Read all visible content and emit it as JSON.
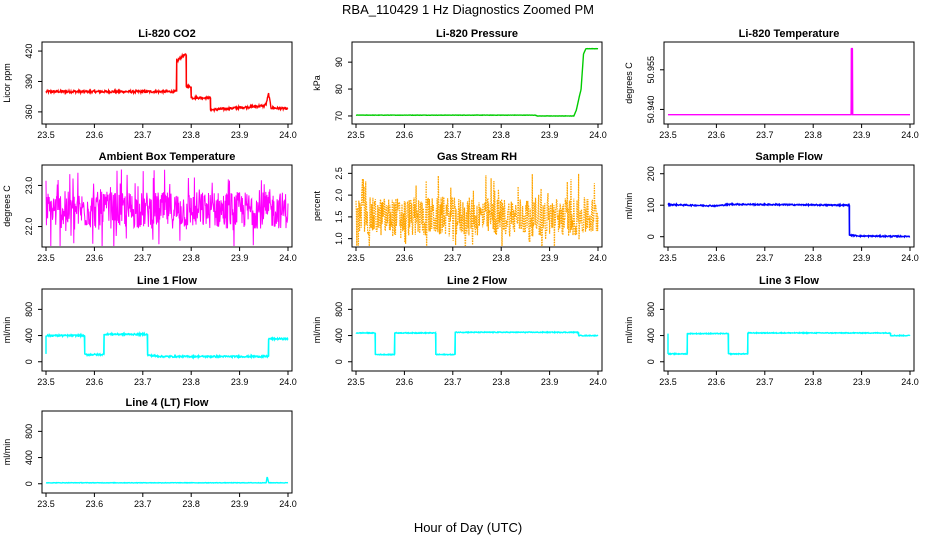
{
  "figure": {
    "title": "RBA_110429  1 Hz Diagnostics Zoomed PM",
    "xlabel": "Hour of Day (UTC)"
  },
  "chart_data": [
    {
      "type": "line",
      "title": "Li-820 CO2",
      "ylabel": "Licor ppm",
      "color": "#ff0000",
      "xlim": [
        23.5,
        24.0
      ],
      "ylim": [
        352,
        425
      ],
      "xticks": [
        "23.5",
        "23.6",
        "23.7",
        "23.8",
        "23.9",
        "24.0"
      ],
      "yticks": [
        360,
        390,
        420
      ],
      "noise": 1.2,
      "series": [
        {
          "x": [
            23.5,
            23.77,
            23.77,
            23.785,
            23.79,
            23.79,
            23.8,
            23.8,
            23.835,
            23.84,
            23.84,
            23.95,
            23.955,
            23.96,
            23.965,
            24.0
          ],
          "y": [
            380,
            380,
            410,
            416,
            416,
            385,
            385,
            374,
            374,
            374,
            362,
            366,
            368,
            378,
            364,
            363
          ]
        }
      ]
    },
    {
      "type": "line",
      "title": "Li-820 Pressure",
      "ylabel": "kPa",
      "color": "#00cc00",
      "xlim": [
        23.5,
        24.0
      ],
      "ylim": [
        68.5,
        96
      ],
      "xticks": [
        "23.5",
        "23.6",
        "23.7",
        "23.8",
        "23.9",
        "24.0"
      ],
      "yticks": [
        70,
        80,
        90
      ],
      "noise": 0.05,
      "series": [
        {
          "x": [
            23.5,
            23.87,
            23.875,
            23.95,
            23.955,
            23.965,
            23.97,
            23.975,
            24.0
          ],
          "y": [
            70.3,
            70.3,
            70,
            70,
            72,
            80,
            93,
            95,
            95
          ]
        }
      ]
    },
    {
      "type": "line",
      "title": "Li-820 Temperature",
      "ylabel": "degrees C",
      "color": "#ff00ff",
      "xlim": [
        23.5,
        24.0
      ],
      "ylim": [
        50.936,
        50.964
      ],
      "xticks": [
        "23.5",
        "23.6",
        "23.7",
        "23.8",
        "23.9",
        "24.0"
      ],
      "yticks": [
        50.94,
        50.955
      ],
      "yticklabels": [
        "50.940",
        "50.955"
      ],
      "noise": 0,
      "series": [
        {
          "x": [
            23.5,
            23.879,
            23.879,
            23.881,
            23.881,
            24.0
          ],
          "y": [
            50.938,
            50.938,
            50.963,
            50.963,
            50.938,
            50.938
          ]
        }
      ]
    },
    {
      "type": "line",
      "title": "Ambient Box Temperature",
      "ylabel": "degrees C",
      "color": "#ff00ff",
      "xlim": [
        23.5,
        24.0
      ],
      "ylim": [
        21.6,
        23.4
      ],
      "xticks": [
        "23.5",
        "23.6",
        "23.7",
        "23.8",
        "23.9",
        "24.0"
      ],
      "yticks": [
        22.0,
        23.0
      ],
      "yticklabels": [
        "22.0",
        "23.0"
      ],
      "noise": 0.45,
      "spiky": true,
      "series": [
        {
          "x": [
            23.5,
            24.0
          ],
          "y": [
            22.4,
            22.4
          ]
        }
      ]
    },
    {
      "type": "line",
      "title": "Gas Stream RH",
      "ylabel": "percent",
      "color": "#ffa500",
      "xlim": [
        23.5,
        24.0
      ],
      "ylim": [
        0.9,
        2.6
      ],
      "xticks": [
        "23.5",
        "23.6",
        "23.7",
        "23.8",
        "23.9",
        "24.0"
      ],
      "yticks": [
        1.0,
        1.5,
        2.0,
        2.5
      ],
      "yticklabels": [
        "1.0",
        "1.5",
        "2.0",
        "2.5"
      ],
      "noise": 0.45,
      "spiky": true,
      "dotted": true,
      "series": [
        {
          "x": [
            23.5,
            24.0
          ],
          "y": [
            1.5,
            1.5
          ]
        }
      ]
    },
    {
      "type": "line",
      "title": "Sample Flow",
      "ylabel": "ml/min",
      "color": "#0000ff",
      "xlim": [
        23.5,
        24.0
      ],
      "ylim": [
        -20,
        215
      ],
      "xticks": [
        "23.5",
        "23.6",
        "23.7",
        "23.8",
        "23.9",
        "24.0"
      ],
      "yticks": [
        0,
        100,
        200
      ],
      "noise": 2,
      "series": [
        {
          "x": [
            23.5,
            23.6,
            23.63,
            23.87,
            23.875,
            23.875,
            23.9,
            24.0
          ],
          "y": [
            102,
            98,
            103,
            100,
            100,
            5,
            2,
            1
          ]
        }
      ]
    },
    {
      "type": "line",
      "title": "Line 1 Flow",
      "ylabel": "ml/min",
      "color": "#00ffff",
      "xlim": [
        23.5,
        24.0
      ],
      "ylim": [
        -80,
        1050
      ],
      "xticks": [
        "23.5",
        "23.6",
        "23.7",
        "23.8",
        "23.9",
        "24.0"
      ],
      "yticks": [
        0,
        400,
        800
      ],
      "noise": 12,
      "series": [
        {
          "x": [
            23.5,
            23.5,
            23.58,
            23.58,
            23.62,
            23.62,
            23.71,
            23.71,
            23.74,
            23.96,
            23.96,
            24.0
          ],
          "y": [
            120,
            400,
            400,
            110,
            110,
            420,
            420,
            100,
            80,
            80,
            350,
            350
          ]
        }
      ]
    },
    {
      "type": "line",
      "title": "Line 2 Flow",
      "ylabel": "ml/min",
      "color": "#00ffff",
      "xlim": [
        23.5,
        24.0
      ],
      "ylim": [
        -80,
        1050
      ],
      "xticks": [
        "23.5",
        "23.6",
        "23.7",
        "23.8",
        "23.9",
        "24.0"
      ],
      "yticks": [
        0,
        400,
        800
      ],
      "noise": 6,
      "series": [
        {
          "x": [
            23.5,
            23.54,
            23.54,
            23.58,
            23.58,
            23.665,
            23.665,
            23.705,
            23.705,
            23.96,
            23.96,
            24.0
          ],
          "y": [
            440,
            440,
            110,
            110,
            440,
            440,
            110,
            110,
            450,
            450,
            400,
            400
          ]
        }
      ]
    },
    {
      "type": "line",
      "title": "Line 3 Flow",
      "ylabel": "ml/min",
      "color": "#00ffff",
      "xlim": [
        23.5,
        24.0
      ],
      "ylim": [
        -80,
        1050
      ],
      "xticks": [
        "23.5",
        "23.6",
        "23.7",
        "23.8",
        "23.9",
        "24.0"
      ],
      "yticks": [
        0,
        400,
        800
      ],
      "noise": 6,
      "series": [
        {
          "x": [
            23.5,
            23.5,
            23.54,
            23.54,
            23.625,
            23.625,
            23.665,
            23.665,
            23.96,
            23.96,
            24.0
          ],
          "y": [
            430,
            120,
            120,
            430,
            430,
            120,
            120,
            440,
            440,
            400,
            400
          ]
        }
      ]
    },
    {
      "type": "line",
      "title": "Line 4 (LT) Flow",
      "ylabel": "ml/min",
      "color": "#00ffff",
      "xlim": [
        23.5,
        24.0
      ],
      "ylim": [
        -80,
        1050
      ],
      "xticks": [
        "23.5",
        "23.6",
        "23.7",
        "23.8",
        "23.9",
        "24.0"
      ],
      "yticks": [
        0,
        400,
        800
      ],
      "noise": 3,
      "series": [
        {
          "x": [
            23.5,
            23.955,
            23.957,
            23.96,
            23.962,
            24.0
          ],
          "y": [
            15,
            15,
            110,
            20,
            15,
            15
          ]
        }
      ]
    }
  ]
}
